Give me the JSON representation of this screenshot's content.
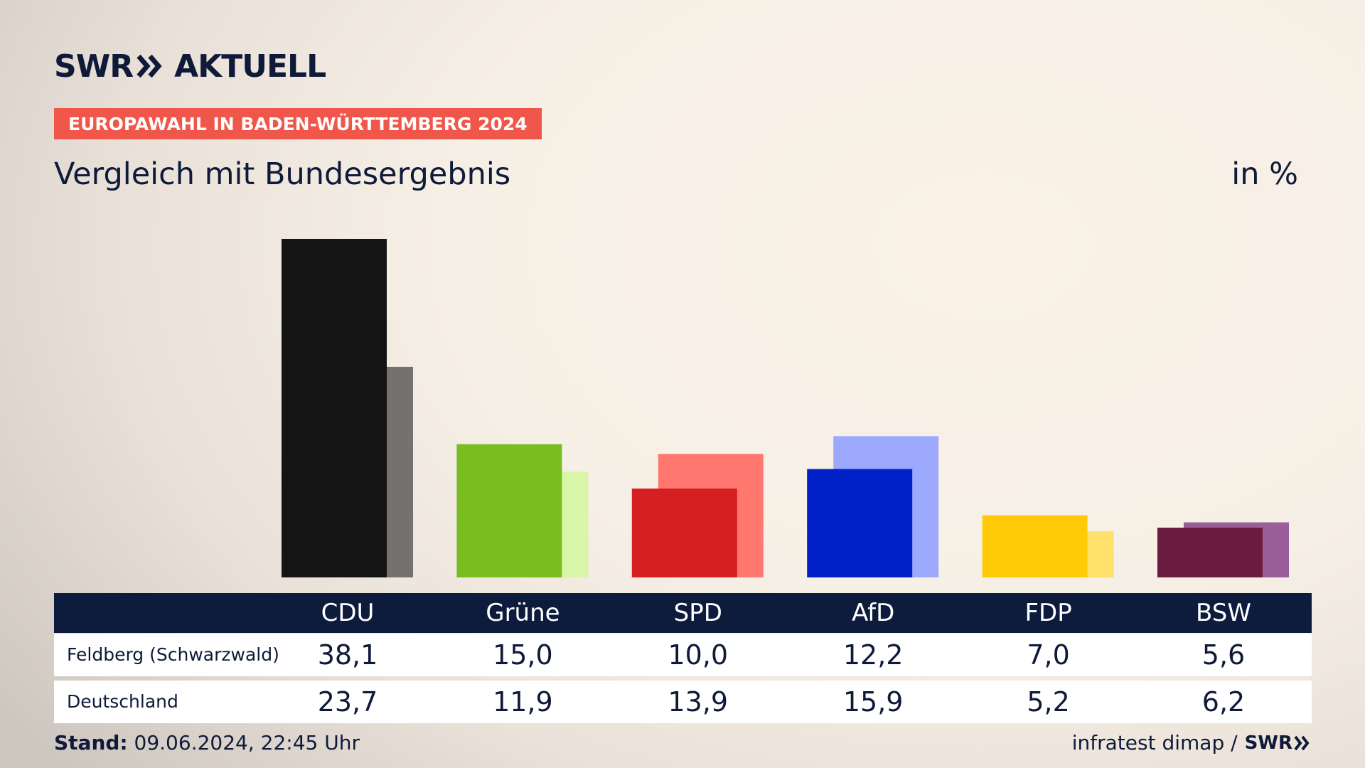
{
  "brand": {
    "name": "SWR",
    "section": "AKTUELL"
  },
  "kicker": "EUROPAWAHL IN BADEN-WÜRTTEMBERG 2024",
  "title": "Vergleich mit Bundesergebnis",
  "unit": "in %",
  "chart_data": {
    "type": "bar",
    "categories": [
      "CDU",
      "Grüne",
      "SPD",
      "AfD",
      "FDP",
      "BSW"
    ],
    "series": [
      {
        "name": "Feldberg (Schwarzwald)",
        "values": [
          38.1,
          15.0,
          10.0,
          12.2,
          7.0,
          5.6
        ]
      },
      {
        "name": "Deutschland",
        "values": [
          23.7,
          11.9,
          13.9,
          15.9,
          5.2,
          6.2
        ]
      }
    ],
    "display_values": [
      [
        "38,1",
        "15,0",
        "10,0",
        "12,2",
        "7,0",
        "5,6"
      ],
      [
        "23,7",
        "11,9",
        "13,9",
        "15,9",
        "5,2",
        "6,2"
      ]
    ],
    "colors_primary": [
      "#141414",
      "#7abd1e",
      "#d51f20",
      "#0021c8",
      "#ffcb08",
      "#6b1b40"
    ],
    "colors_secondary": [
      "#74716e",
      "#d8f5a9",
      "#ff776f",
      "#9da9fc",
      "#ffe06a",
      "#9a5e9a"
    ],
    "ylim": [
      0,
      38.1
    ],
    "grid": false,
    "legend": "table-below"
  },
  "footer": {
    "stand_label": "Stand:",
    "stand_value": "09.06.2024, 22:45 Uhr",
    "source": "infratest dimap /",
    "source_brand": "SWR"
  }
}
